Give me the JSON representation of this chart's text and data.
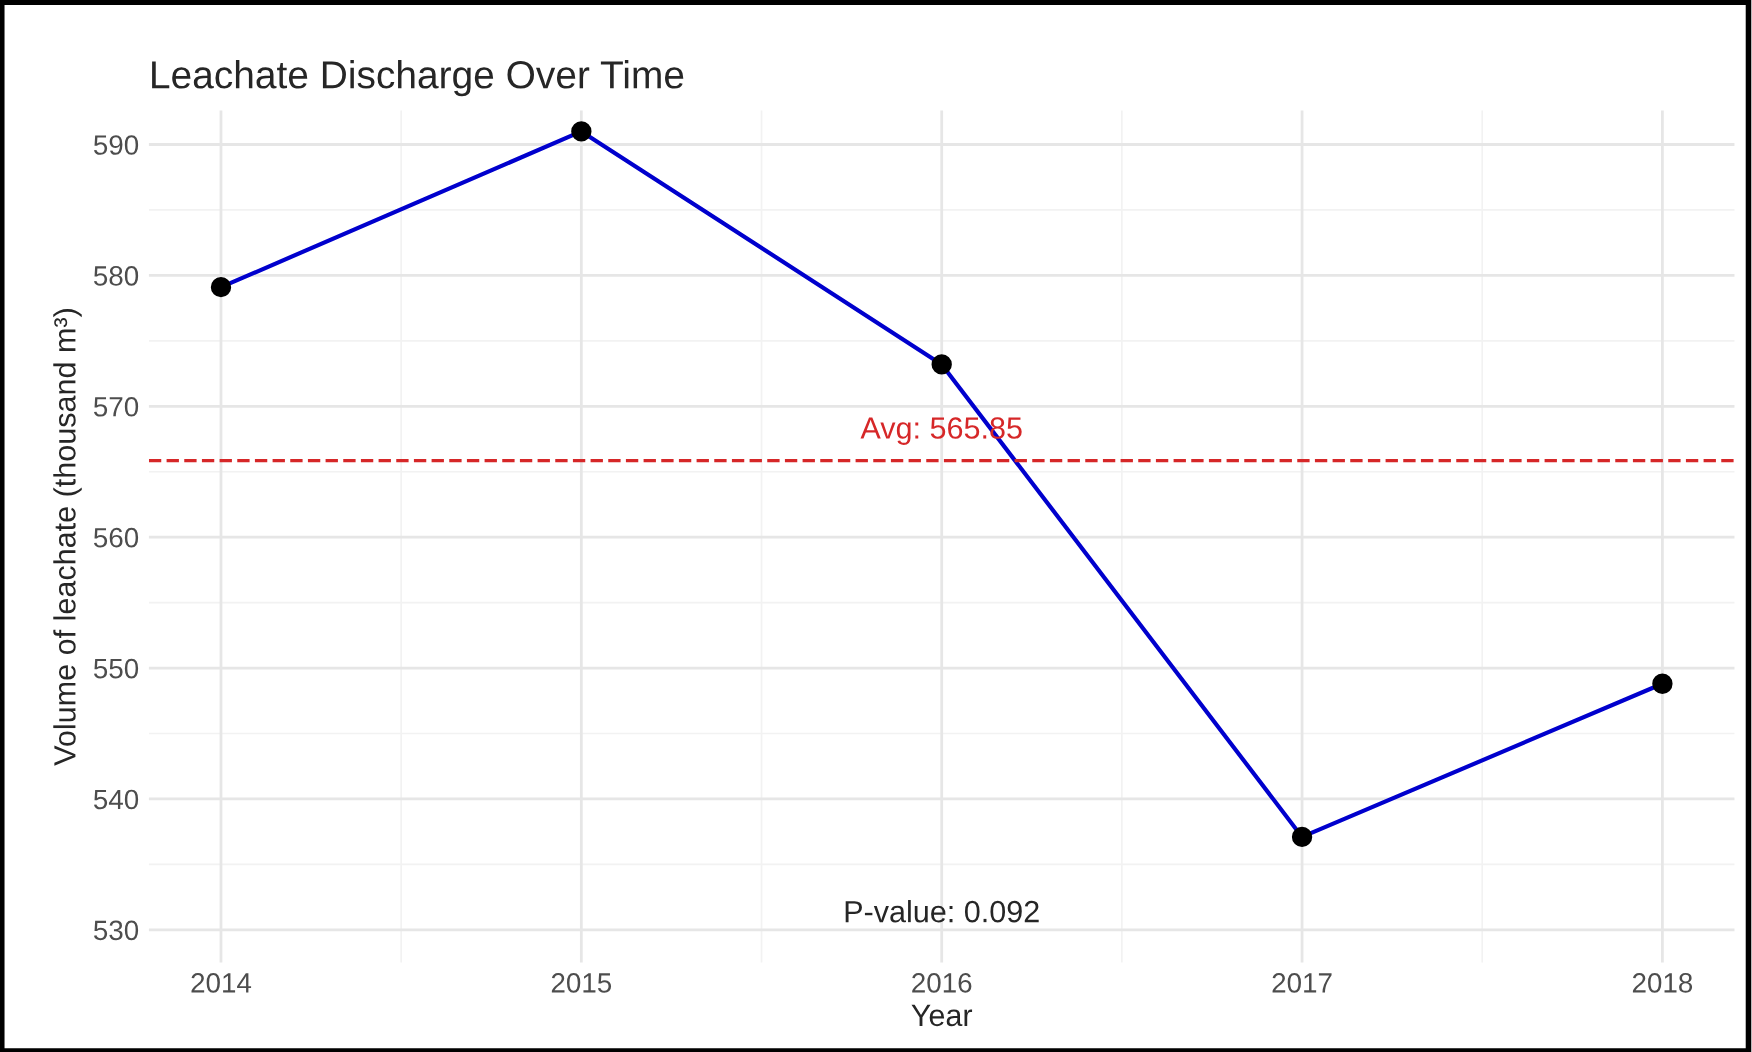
{
  "chart_data": {
    "type": "line",
    "title": "Leachate Discharge Over Time",
    "xlabel": "Year",
    "ylabel": "Volume of leachate (thousand m³)",
    "x": [
      2014,
      2015,
      2016,
      2017,
      2018
    ],
    "series": [
      {
        "color": "#0000cd",
        "values": [
          579.1,
          591.0,
          573.2,
          537.1,
          548.8
        ]
      }
    ],
    "marker": "circle",
    "line_style": "solid",
    "xlim": [
      2013.8,
      2018.2
    ],
    "xticks": [
      2014,
      2015,
      2016,
      2017,
      2018
    ],
    "ylim": [
      527.5,
      592.6
    ],
    "yticks": [
      530,
      540,
      550,
      560,
      570,
      580,
      590
    ],
    "ref_lines": [
      {
        "axis": "y",
        "value": 565.85,
        "label": "Avg: 565.85",
        "color": "#d62728",
        "line_style": "dashed"
      }
    ],
    "annotations": [
      "P-value: 0.092"
    ],
    "grid": true
  }
}
